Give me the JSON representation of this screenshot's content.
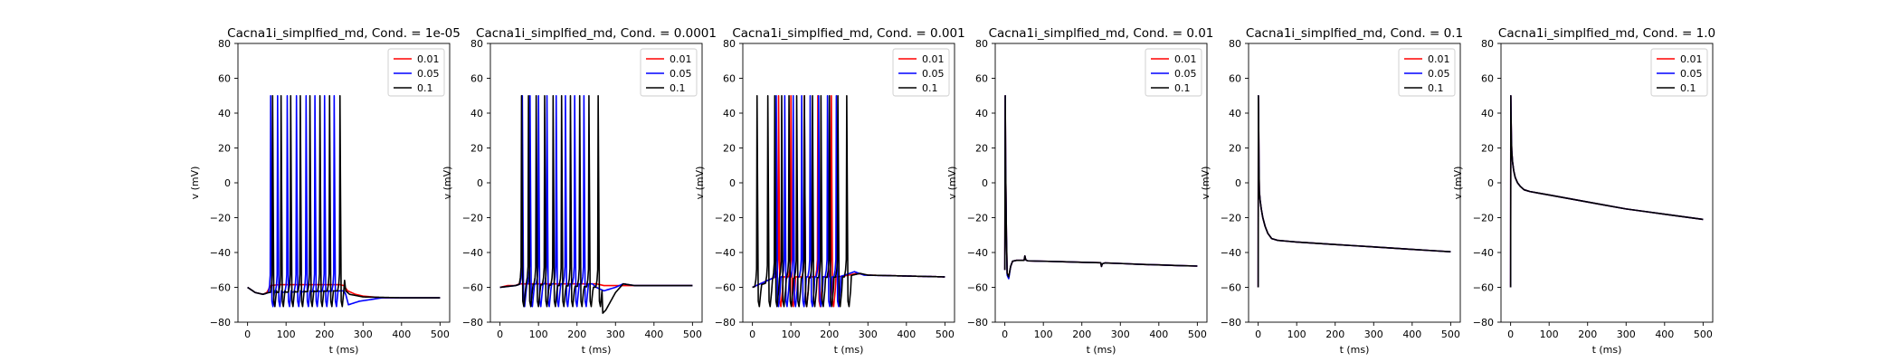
{
  "chart_data": [
    {
      "type": "line",
      "title": "Cacna1i_simplfied_md, Cond. = 1e-05",
      "xlabel": "t (ms)",
      "ylabel": "v (mV)",
      "xlim": [
        -25,
        525
      ],
      "ylim": [
        -80,
        80
      ],
      "xticks": [
        0,
        100,
        200,
        300,
        400,
        500
      ],
      "yticks": [
        -80,
        -60,
        -40,
        -20,
        0,
        20,
        40,
        60,
        80
      ],
      "legend_position": "top-right",
      "series": [
        {
          "name": "0.01",
          "color": "#ff0000",
          "spike_times": [],
          "x": [
            0,
            20,
            40,
            50,
            55,
            60,
            80,
            100,
            150,
            200,
            240,
            250,
            260,
            280,
            300,
            350,
            400,
            450,
            500
          ],
          "y": [
            -60,
            -63,
            -64,
            -63,
            -61,
            -59,
            -58.5,
            -58.5,
            -58.5,
            -58.5,
            -58.5,
            -59,
            -62,
            -64,
            -65,
            -66,
            -66,
            -66,
            -66
          ]
        },
        {
          "name": "0.05",
          "color": "#0000ff",
          "spike_times": [
            60,
            78,
            103,
            127,
            152,
            175,
            200,
            225
          ],
          "baseline": [
            [
              0,
              -60
            ],
            [
              20,
              -63
            ],
            [
              40,
              -64
            ],
            [
              55,
              -63
            ],
            [
              250,
              -62
            ],
            [
              255,
              -64
            ],
            [
              262,
              -70
            ],
            [
              290,
              -68
            ],
            [
              350,
              -66
            ],
            [
              400,
              -66
            ],
            [
              500,
              -66
            ]
          ]
        },
        {
          "name": "0.1",
          "color": "#000000",
          "spike_times": [
            65,
            87,
            112,
            137,
            162,
            188,
            213,
            240
          ],
          "baseline": [
            [
              0,
              -60
            ],
            [
              20,
              -63
            ],
            [
              40,
              -64
            ],
            [
              55,
              -63
            ],
            [
              240,
              -62
            ],
            [
              248,
              -48
            ],
            [
              255,
              -62
            ],
            [
              265,
              -64
            ],
            [
              300,
              -65.5
            ],
            [
              400,
              -66
            ],
            [
              500,
              -66
            ]
          ]
        }
      ]
    },
    {
      "type": "line",
      "title": "Cacna1i_simplfied_md, Cond. = 0.0001",
      "xlabel": "t (ms)",
      "ylabel": "v (mV)",
      "xlim": [
        -25,
        525
      ],
      "ylim": [
        -80,
        80
      ],
      "xticks": [
        0,
        100,
        200,
        300,
        400,
        500
      ],
      "yticks": [
        -80,
        -60,
        -40,
        -20,
        0,
        20,
        40,
        60,
        80
      ],
      "legend_position": "top-right",
      "series": [
        {
          "name": "0.01",
          "color": "#ff0000",
          "spike_times": [],
          "x": [
            0,
            20,
            40,
            50,
            55,
            60,
            100,
            150,
            200,
            250,
            270,
            300,
            350,
            400,
            500
          ],
          "y": [
            -60,
            -59,
            -59,
            -58,
            -58,
            -58,
            -58,
            -58,
            -58,
            -58,
            -59,
            -59,
            -59,
            -59,
            -59
          ]
        },
        {
          "name": "0.05",
          "color": "#0000ff",
          "spike_times": [
            58,
            78,
            100,
            122,
            146,
            170,
            194,
            218
          ],
          "baseline": [
            [
              0,
              -60
            ],
            [
              40,
              -59
            ],
            [
              55,
              -58
            ],
            [
              240,
              -58
            ],
            [
              250,
              -60
            ],
            [
              270,
              -62
            ],
            [
              300,
              -60
            ],
            [
              320,
              -58
            ],
            [
              350,
              -59
            ],
            [
              500,
              -59
            ]
          ]
        },
        {
          "name": "0.1",
          "color": "#000000",
          "spike_times": [
            56,
            74,
            94,
            116,
            138,
            160,
            183,
            207,
            231,
            255
          ],
          "baseline": [
            [
              0,
              -60
            ],
            [
              40,
              -59
            ],
            [
              55,
              -58
            ],
            [
              255,
              -60
            ],
            [
              262,
              -76
            ],
            [
              275,
              -73
            ],
            [
              300,
              -63
            ],
            [
              320,
              -58
            ],
            [
              350,
              -59
            ],
            [
              500,
              -59
            ]
          ]
        }
      ]
    },
    {
      "type": "line",
      "title": "Cacna1i_simplfied_md, Cond. = 0.001",
      "xlabel": "t (ms)",
      "ylabel": "v (mV)",
      "xlim": [
        -25,
        525
      ],
      "ylim": [
        -80,
        80
      ],
      "xticks": [
        0,
        100,
        200,
        300,
        400,
        500
      ],
      "yticks": [
        -80,
        -60,
        -40,
        -20,
        0,
        20,
        40,
        60,
        80
      ],
      "legend_position": "top-right",
      "series": [
        {
          "name": "0.01",
          "color": "#ff0000",
          "spike_times": [
            68,
            100,
            135,
            170,
            205
          ],
          "baseline": [
            [
              0,
              -60
            ],
            [
              40,
              -56
            ],
            [
              60,
              -54
            ],
            [
              220,
              -54
            ],
            [
              250,
              -53
            ],
            [
              270,
              -52
            ],
            [
              300,
              -53
            ],
            [
              400,
              -53.5
            ],
            [
              500,
              -54
            ]
          ]
        },
        {
          "name": "0.05",
          "color": "#0000ff",
          "spike_times": [
            62,
            84,
            106,
            128,
            150,
            172,
            195,
            218
          ],
          "baseline": [
            [
              0,
              -60
            ],
            [
              40,
              -56
            ],
            [
              60,
              -54
            ],
            [
              225,
              -54
            ],
            [
              240,
              -53
            ],
            [
              265,
              -51
            ],
            [
              290,
              -53
            ],
            [
              400,
              -53.5
            ],
            [
              500,
              -54
            ]
          ]
        },
        {
          "name": "0.1",
          "color": "#000000",
          "spike_times": [
            12,
            40,
            58,
            76,
            95,
            115,
            135,
            156,
            178,
            200,
            222,
            245
          ],
          "baseline": [
            [
              0,
              -60
            ],
            [
              30,
              -58
            ],
            [
              60,
              -55
            ],
            [
              245,
              -54
            ],
            [
              260,
              -53
            ],
            [
              280,
              -52
            ],
            [
              300,
              -53
            ],
            [
              400,
              -53.5
            ],
            [
              500,
              -54
            ]
          ]
        }
      ]
    },
    {
      "type": "line",
      "title": "Cacna1i_simplfied_md, Cond. = 0.01",
      "xlabel": "t (ms)",
      "ylabel": "v (mV)",
      "xlim": [
        -25,
        525
      ],
      "ylim": [
        -80,
        80
      ],
      "xticks": [
        0,
        100,
        200,
        300,
        400,
        500
      ],
      "yticks": [
        -80,
        -60,
        -40,
        -20,
        0,
        20,
        40,
        60,
        80
      ],
      "legend_position": "top-right",
      "series": [
        {
          "name": "0.01",
          "color": "#ff0000",
          "spike_times": [],
          "x": [
            0,
            1,
            2,
            4,
            6,
            10,
            15,
            20,
            30,
            50,
            52,
            54,
            56,
            60,
            100,
            150,
            200,
            249,
            251,
            253,
            260,
            300,
            350,
            400,
            450,
            500
          ],
          "y": [
            -50,
            50,
            10,
            -30,
            -52,
            -54,
            -48,
            -45,
            -44.5,
            -44.5,
            -42,
            -44,
            -44.5,
            -44.8,
            -45,
            -45.3,
            -45.6,
            -45.9,
            -48,
            -46.5,
            -46,
            -46.3,
            -46.8,
            -47.1,
            -47.5,
            -47.8
          ]
        },
        {
          "name": "0.05",
          "color": "#0000ff",
          "spike_times": [],
          "x": [
            0,
            1,
            2,
            4,
            6,
            10,
            15,
            20,
            30,
            50,
            52,
            54,
            56,
            60,
            100,
            150,
            200,
            249,
            251,
            253,
            260,
            300,
            350,
            400,
            450,
            500
          ],
          "y": [
            -50,
            50,
            10,
            -30,
            -53,
            -55,
            -48,
            -45,
            -44.5,
            -44.5,
            -42,
            -44,
            -44.5,
            -44.8,
            -45,
            -45.3,
            -45.6,
            -45.9,
            -48,
            -46.5,
            -46,
            -46.3,
            -46.8,
            -47.1,
            -47.5,
            -47.8
          ]
        },
        {
          "name": "0.1",
          "color": "#000000",
          "spike_times": [],
          "x": [
            0,
            1,
            2,
            4,
            6,
            10,
            15,
            20,
            30,
            50,
            52,
            54,
            56,
            60,
            100,
            150,
            200,
            249,
            251,
            253,
            260,
            300,
            350,
            400,
            450,
            500
          ],
          "y": [
            -50,
            50,
            10,
            -30,
            -52,
            -54,
            -48,
            -45,
            -44.5,
            -44.5,
            -42,
            -44,
            -44.5,
            -44.8,
            -45,
            -45.3,
            -45.6,
            -45.9,
            -48,
            -46.5,
            -46,
            -46.3,
            -46.8,
            -47.1,
            -47.5,
            -47.8
          ]
        }
      ]
    },
    {
      "type": "line",
      "title": "Cacna1i_simplfied_md, Cond. = 0.1",
      "xlabel": "t (ms)",
      "ylabel": "v (mV)",
      "xlim": [
        -25,
        525
      ],
      "ylim": [
        -80,
        80
      ],
      "xticks": [
        0,
        100,
        200,
        300,
        400,
        500
      ],
      "yticks": [
        -80,
        -60,
        -40,
        -20,
        0,
        20,
        40,
        60,
        80
      ],
      "legend_position": "top-right",
      "series": [
        {
          "name": "0.01",
          "color": "#ff0000",
          "spike_times": [],
          "x": [
            0,
            0.5,
            1,
            2,
            3,
            5,
            8,
            12,
            18,
            25,
            35,
            50,
            75,
            100,
            150,
            200,
            250,
            300,
            350,
            400,
            450,
            500
          ],
          "y": [
            -60,
            50,
            40,
            10,
            -5,
            -10,
            -15,
            -20,
            -25,
            -29,
            -32,
            -33,
            -33.5,
            -34,
            -34.7,
            -35.4,
            -36.1,
            -36.8,
            -37.5,
            -38.2,
            -38.9,
            -39.6
          ]
        },
        {
          "name": "0.05",
          "color": "#0000ff",
          "spike_times": [],
          "x": [
            0,
            0.5,
            1,
            2,
            3,
            5,
            8,
            12,
            18,
            25,
            35,
            50,
            75,
            100,
            150,
            200,
            250,
            300,
            350,
            400,
            450,
            500
          ],
          "y": [
            -60,
            50,
            40,
            10,
            -5,
            -10,
            -15,
            -20,
            -25,
            -29,
            -32,
            -33,
            -33.5,
            -34,
            -34.7,
            -35.4,
            -36.1,
            -36.8,
            -37.5,
            -38.2,
            -38.9,
            -39.6
          ]
        },
        {
          "name": "0.1",
          "color": "#000000",
          "spike_times": [],
          "x": [
            0,
            0.5,
            1,
            2,
            3,
            5,
            8,
            12,
            18,
            25,
            35,
            50,
            75,
            100,
            150,
            200,
            250,
            300,
            350,
            400,
            450,
            500
          ],
          "y": [
            -60,
            50,
            40,
            10,
            -5,
            -10,
            -15,
            -20,
            -25,
            -29,
            -32,
            -33,
            -33.5,
            -34,
            -34.7,
            -35.4,
            -36.1,
            -36.8,
            -37.5,
            -38.2,
            -38.9,
            -39.6
          ]
        }
      ]
    },
    {
      "type": "line",
      "title": "Cacna1i_simplfied_md, Cond. = 1.0",
      "xlabel": "t (ms)",
      "ylabel": "v (mV)",
      "xlim": [
        -25,
        525
      ],
      "ylim": [
        -80,
        80
      ],
      "xticks": [
        0,
        100,
        200,
        300,
        400,
        500
      ],
      "yticks": [
        -80,
        -60,
        -40,
        -20,
        0,
        20,
        40,
        60,
        80
      ],
      "legend_position": "top-right",
      "series": [
        {
          "name": "0.01",
          "color": "#ff0000",
          "spike_times": [],
          "x": [
            0,
            0.5,
            1,
            2,
            3,
            5,
            8,
            12,
            18,
            25,
            35,
            50,
            75,
            100,
            150,
            200,
            250,
            300,
            350,
            400,
            450,
            500
          ],
          "y": [
            -60,
            50,
            40,
            25,
            18,
            12,
            7,
            3,
            0,
            -2,
            -4,
            -5,
            -6,
            -7,
            -9,
            -11,
            -13,
            -15,
            -16.5,
            -18,
            -19.5,
            -21
          ]
        },
        {
          "name": "0.05",
          "color": "#0000ff",
          "spike_times": [],
          "x": [
            0,
            0.5,
            1,
            2,
            3,
            5,
            8,
            12,
            18,
            25,
            35,
            50,
            75,
            100,
            150,
            200,
            250,
            300,
            350,
            400,
            450,
            500
          ],
          "y": [
            -60,
            50,
            40,
            25,
            18,
            12,
            7,
            3,
            0,
            -2,
            -4,
            -5,
            -6,
            -7,
            -9,
            -11,
            -13,
            -15,
            -16.5,
            -18,
            -19.5,
            -21
          ]
        },
        {
          "name": "0.1",
          "color": "#000000",
          "spike_times": [],
          "x": [
            0,
            0.5,
            1,
            2,
            3,
            5,
            8,
            12,
            18,
            25,
            35,
            50,
            75,
            100,
            150,
            200,
            250,
            300,
            350,
            400,
            450,
            500
          ],
          "y": [
            -60,
            50,
            40,
            25,
            18,
            12,
            7,
            3,
            0,
            -2,
            -4,
            -5,
            -6,
            -7,
            -9,
            -11,
            -13,
            -15,
            -16.5,
            -18,
            -19.5,
            -21
          ]
        }
      ]
    }
  ]
}
